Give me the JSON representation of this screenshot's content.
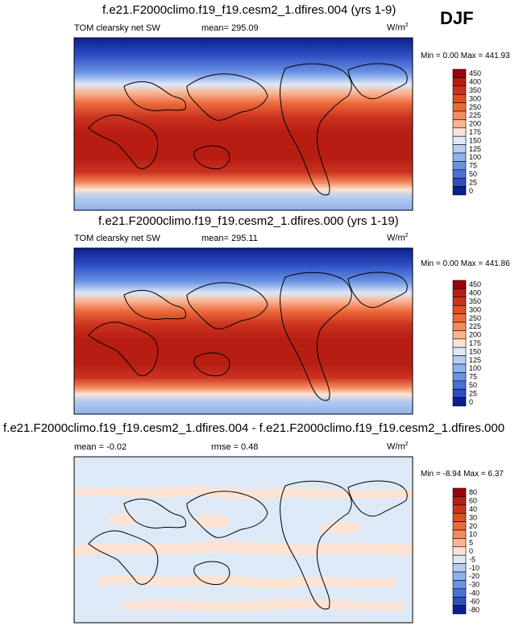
{
  "season": "DJF",
  "panels": [
    {
      "title": "f.e21.F2000climo.f19_f19.cesm2_1.dfires.004 (yrs 1-9)",
      "left_label": "TOM clearsky net SW",
      "center_label": "mean= 295.09",
      "units_base": "W/m",
      "units_exp": "2",
      "minmax": "Min =   0.00 Max = 441.93"
    },
    {
      "title": "f.e21.F2000climo.f19_f19.cesm2_1.dfires.000 (yrs 1-19)",
      "left_label": "TOM clearsky net SW",
      "center_label": "mean= 295.11",
      "units_base": "W/m",
      "units_exp": "2",
      "minmax": "Min =   0.00 Max = 441.86"
    },
    {
      "title": "f.e21.F2000climo.f19_f19.cesm2_1.dfires.004 - f.e21.F2000climo.f19_f19.cesm2_1.dfires.000",
      "left_label": "mean =  -0.02",
      "center_label": "rmse =   0.48",
      "units_base": "W/m",
      "units_exp": "2",
      "minmax": "Min =  -8.94 Max =   6.37"
    }
  ],
  "chart_data": [
    {
      "type": "heatmap",
      "field": "TOM clearsky net SW",
      "colorbar_levels": [
        "450",
        "400",
        "350",
        "300",
        "250",
        "225",
        "200",
        "175",
        "150",
        "125",
        "100",
        "75",
        "50",
        "25",
        "0"
      ],
      "colorbar_colors": [
        "#99000d",
        "#b81d12",
        "#cb3320",
        "#e0501f",
        "#ec6a3a",
        "#f48b5e",
        "#fab494",
        "#fde3d3",
        "#dde9f7",
        "#b7cef0",
        "#8fb1ec",
        "#6a92e4",
        "#4a70d7",
        "#2d4ec2",
        "#0b1f8f"
      ],
      "approx_zonal_profile": [
        {
          "lat": 80,
          "value": 20
        },
        {
          "lat": 60,
          "value": 90
        },
        {
          "lat": 40,
          "value": 190
        },
        {
          "lat": 20,
          "value": 330
        },
        {
          "lat": 0,
          "value": 390
        },
        {
          "lat": -20,
          "value": 420
        },
        {
          "lat": -40,
          "value": 380
        },
        {
          "lat": -60,
          "value": 250
        },
        {
          "lat": -80,
          "value": 150
        }
      ]
    },
    {
      "type": "heatmap",
      "field": "TOM clearsky net SW",
      "colorbar_levels": [
        "450",
        "400",
        "350",
        "300",
        "250",
        "225",
        "200",
        "175",
        "150",
        "125",
        "100",
        "75",
        "50",
        "25",
        "0"
      ],
      "colorbar_colors": [
        "#99000d",
        "#b81d12",
        "#cb3320",
        "#e0501f",
        "#ec6a3a",
        "#f48b5e",
        "#fab494",
        "#fde3d3",
        "#dde9f7",
        "#b7cef0",
        "#8fb1ec",
        "#6a92e4",
        "#4a70d7",
        "#2d4ec2",
        "#0b1f8f"
      ],
      "approx_zonal_profile": [
        {
          "lat": 80,
          "value": 20
        },
        {
          "lat": 60,
          "value": 90
        },
        {
          "lat": 40,
          "value": 190
        },
        {
          "lat": 20,
          "value": 330
        },
        {
          "lat": 0,
          "value": 390
        },
        {
          "lat": -20,
          "value": 420
        },
        {
          "lat": -40,
          "value": 380
        },
        {
          "lat": -60,
          "value": 250
        },
        {
          "lat": -80,
          "value": 150
        }
      ]
    },
    {
      "type": "heatmap",
      "field": "difference",
      "colorbar_levels": [
        "80",
        "60",
        "40",
        "30",
        "20",
        "10",
        "5",
        "0",
        "-5",
        "-10",
        "-20",
        "-30",
        "-40",
        "-60",
        "-80"
      ],
      "colorbar_colors": [
        "#99000d",
        "#b81d12",
        "#cb3320",
        "#e0501f",
        "#ec6a3a",
        "#f48b5e",
        "#fab494",
        "#fde3d3",
        "#dde9f7",
        "#b7cef0",
        "#8fb1ec",
        "#6a92e4",
        "#4a70d7",
        "#2d4ec2",
        "#0b1f8f"
      ]
    }
  ]
}
